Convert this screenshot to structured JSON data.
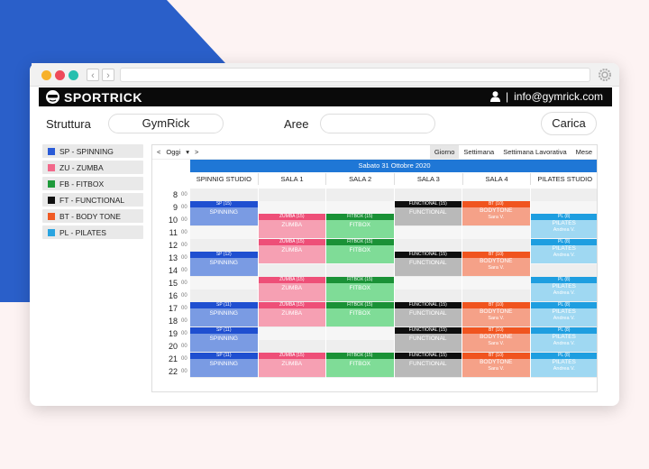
{
  "brand": {
    "name": "SPORTRICK"
  },
  "user": {
    "email": "info@gymrick.com"
  },
  "filters": {
    "struttura_label": "Struttura",
    "struttura_value": "GymRick",
    "aree_label": "Aree",
    "aree_value": "",
    "carica_label": "Carica"
  },
  "legend": [
    {
      "code": "SP",
      "name": "SPINNING",
      "color": "#2a5bd7"
    },
    {
      "code": "ZU",
      "name": "ZUMBA",
      "color": "#f2688a"
    },
    {
      "code": "FB",
      "name": "FITBOX",
      "color": "#1e9a3a"
    },
    {
      "code": "FT",
      "name": "FUNCTIONAL",
      "color": "#111111"
    },
    {
      "code": "BT",
      "name": "BODY TONE",
      "color": "#f05a24"
    },
    {
      "code": "PL",
      "name": "PILATES",
      "color": "#2aa4e0"
    }
  ],
  "calendar": {
    "nav_prev": "<",
    "today_label": "Oggi",
    "nav_dropdown": "▾",
    "nav_next": ">",
    "views": [
      "Giorno",
      "Settimana",
      "Settimana Lavorativa",
      "Mese"
    ],
    "active_view": "Giorno",
    "date_label": "Sabato 31 Ottobre 2020",
    "columns": [
      "SPINNIG STUDIO",
      "SALA 1",
      "SALA 2",
      "SALA 3",
      "SALA 4",
      "PILATES STUDIO"
    ],
    "hours": [
      "8",
      "9",
      "10",
      "11",
      "12",
      "13",
      "14",
      "15",
      "16",
      "17",
      "18",
      "19",
      "20",
      "21",
      "22"
    ],
    "minutes_label": "00"
  },
  "events": [
    {
      "col": 0,
      "start": 9,
      "header": "SP (15)",
      "title": "SPINNING",
      "sub": "",
      "type": "SP"
    },
    {
      "col": 0,
      "start": 13,
      "header": "SP (12)",
      "title": "SPINNING",
      "sub": "",
      "type": "SP"
    },
    {
      "col": 0,
      "start": 17,
      "header": "SP (11)",
      "title": "SPINNING",
      "sub": "",
      "type": "SP"
    },
    {
      "col": 0,
      "start": 19,
      "header": "SP (11)",
      "title": "SPINNING",
      "sub": "",
      "type": "SP"
    },
    {
      "col": 0,
      "start": 21,
      "header": "SP (11)",
      "title": "SPINNING",
      "sub": "",
      "type": "SP"
    },
    {
      "col": 1,
      "start": 10,
      "header": "ZUMBA (15)",
      "title": "ZUMBA",
      "sub": "",
      "type": "ZU"
    },
    {
      "col": 1,
      "start": 12,
      "header": "ZUMBA (15)",
      "title": "ZUMBA",
      "sub": "",
      "type": "ZU"
    },
    {
      "col": 1,
      "start": 15,
      "header": "ZUMBA (15)",
      "title": "ZUMBA",
      "sub": "",
      "type": "ZU"
    },
    {
      "col": 1,
      "start": 17,
      "header": "ZUMBA (15)",
      "title": "ZUMBA",
      "sub": "",
      "type": "ZU"
    },
    {
      "col": 1,
      "start": 21,
      "header": "ZUMBA (15)",
      "title": "ZUMBA",
      "sub": "",
      "type": "ZU"
    },
    {
      "col": 2,
      "start": 10,
      "header": "FITBOX (15)",
      "title": "FITBOX",
      "sub": "",
      "type": "FB"
    },
    {
      "col": 2,
      "start": 12,
      "header": "FITBOX (15)",
      "title": "FITBOX",
      "sub": "",
      "type": "FB"
    },
    {
      "col": 2,
      "start": 15,
      "header": "FITBOX (15)",
      "title": "FITBOX",
      "sub": "",
      "type": "FB"
    },
    {
      "col": 2,
      "start": 17,
      "header": "FITBOX (15)",
      "title": "FITBOX",
      "sub": "",
      "type": "FB"
    },
    {
      "col": 2,
      "start": 21,
      "header": "FITBOX (15)",
      "title": "FITBOX",
      "sub": "",
      "type": "FB"
    },
    {
      "col": 3,
      "start": 9,
      "header": "FUNCTIONAL (15)",
      "title": "FUNCTIONAL",
      "sub": "",
      "type": "FT"
    },
    {
      "col": 3,
      "start": 13,
      "header": "FUNCTIONAL (15)",
      "title": "FUNCTIONAL",
      "sub": "",
      "type": "FT"
    },
    {
      "col": 3,
      "start": 17,
      "header": "FUNCTIONAL (15)",
      "title": "FUNCTIONAL",
      "sub": "",
      "type": "FT"
    },
    {
      "col": 3,
      "start": 19,
      "header": "FUNCTIONAL (15)",
      "title": "FUNCTIONAL",
      "sub": "",
      "type": "FT"
    },
    {
      "col": 3,
      "start": 21,
      "header": "FUNCTIONAL (15)",
      "title": "FUNCTIONAL",
      "sub": "",
      "type": "FT"
    },
    {
      "col": 4,
      "start": 9,
      "header": "BT (10)",
      "title": "BODYTONE",
      "sub": "Sara V.",
      "type": "BT"
    },
    {
      "col": 4,
      "start": 13,
      "header": "BT (10)",
      "title": "BODYTONE",
      "sub": "Sara V.",
      "type": "BT"
    },
    {
      "col": 4,
      "start": 17,
      "header": "BT (10)",
      "title": "BODYTONE",
      "sub": "Sara V.",
      "type": "BT"
    },
    {
      "col": 4,
      "start": 19,
      "header": "BT (10)",
      "title": "BODYTONE",
      "sub": "Sara V.",
      "type": "BT"
    },
    {
      "col": 4,
      "start": 21,
      "header": "BT (10)",
      "title": "BODYTONE",
      "sub": "Sara V.",
      "type": "BT"
    },
    {
      "col": 5,
      "start": 10,
      "header": "PL (8)",
      "title": "PILATES",
      "sub": "Andrea V.",
      "type": "PL"
    },
    {
      "col": 5,
      "start": 12,
      "header": "PL (8)",
      "title": "PILATES",
      "sub": "Andrea V.",
      "type": "PL"
    },
    {
      "col": 5,
      "start": 15,
      "header": "PL (8)",
      "title": "PILATES",
      "sub": "Andrea V.",
      "type": "PL"
    },
    {
      "col": 5,
      "start": 17,
      "header": "PL (8)",
      "title": "PILATES",
      "sub": "Andrea V.",
      "type": "PL"
    },
    {
      "col": 5,
      "start": 19,
      "header": "PL (8)",
      "title": "PILATES",
      "sub": "Andrea V.",
      "type": "PL"
    },
    {
      "col": 5,
      "start": 21,
      "header": "PL (8)",
      "title": "PILATES",
      "sub": "Andrea V.",
      "type": "PL"
    }
  ],
  "type_colors": {
    "SP": {
      "head": "#1f4fd0",
      "body": "#7a9be3"
    },
    "ZU": {
      "head": "#ee4f78",
      "body": "#f6a0b3"
    },
    "FB": {
      "head": "#1a9136",
      "body": "#7fdc97"
    },
    "FT": {
      "head": "#0e0e0e",
      "body": "#b9b9b9"
    },
    "BT": {
      "head": "#f0541f",
      "body": "#f5a188"
    },
    "PL": {
      "head": "#1e9ee0",
      "body": "#9fd8f2"
    }
  },
  "colors": {
    "blue_bg": "#2a5fc9",
    "banner": "#1f77d6"
  }
}
